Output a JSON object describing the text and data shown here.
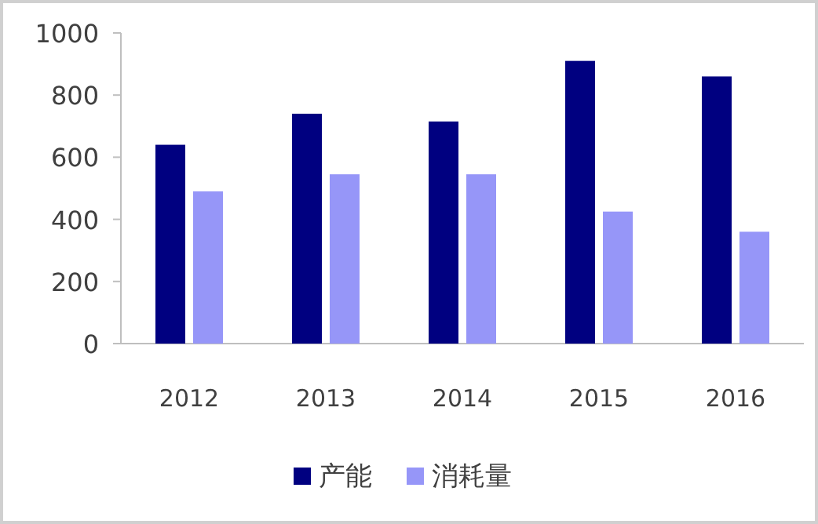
{
  "chart_data": {
    "type": "bar",
    "categories": [
      "2012",
      "2013",
      "2014",
      "2015",
      "2016"
    ],
    "series": [
      {
        "name": "产能",
        "color": "#000080",
        "values": [
          640,
          740,
          715,
          910,
          860
        ]
      },
      {
        "name": "消耗量",
        "color": "#9696f8",
        "values": [
          490,
          545,
          545,
          425,
          360
        ]
      }
    ],
    "ylim": [
      0,
      1000
    ],
    "yticks": [
      0,
      200,
      400,
      600,
      800,
      1000
    ],
    "grid": false,
    "legend": "bottom"
  }
}
